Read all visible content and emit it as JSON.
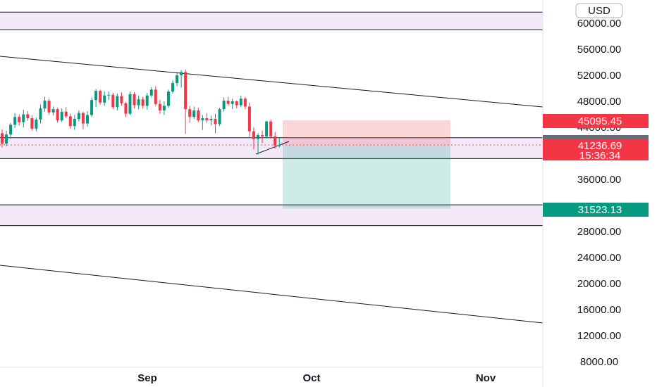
{
  "chart_data": {
    "type": "candlestick",
    "currency": "USD",
    "ylim": [
      6000,
      66000
    ],
    "xlabel": "",
    "ylabel": "",
    "x_ticks": [
      "Sep",
      "Oct",
      "Nov"
    ],
    "y_ticks": [
      60000,
      56000,
      52000,
      48000,
      44000,
      36000,
      28000,
      24000,
      20000,
      16000,
      12000,
      8000
    ],
    "y_tick_labels": [
      "60000.00",
      "56000.00",
      "52000.00",
      "48000.00",
      "44000.00",
      "36000.00",
      "28000.00",
      "24000.00",
      "20000.00",
      "16000.00",
      "12000.00",
      "8000.00"
    ],
    "grid": false,
    "candles": [
      [
        43100,
        43700,
        40900,
        41500
      ],
      [
        41500,
        43500,
        41100,
        42900
      ],
      [
        42900,
        44700,
        42200,
        44400
      ],
      [
        44400,
        46200,
        43900,
        45600
      ],
      [
        45600,
        46000,
        44300,
        44800
      ],
      [
        44800,
        46700,
        44000,
        46000
      ],
      [
        46000,
        46500,
        45000,
        45400
      ],
      [
        45400,
        45900,
        43500,
        43800
      ],
      [
        43800,
        45500,
        43400,
        45200
      ],
      [
        45200,
        47500,
        44600,
        46900
      ],
      [
        46900,
        48700,
        46400,
        48100
      ],
      [
        48100,
        48400,
        45900,
        46300
      ],
      [
        46300,
        47200,
        45800,
        46800
      ],
      [
        46800,
        47000,
        44700,
        45100
      ],
      [
        45100,
        46900,
        44800,
        46400
      ],
      [
        46400,
        47100,
        45400,
        45700
      ],
      [
        45700,
        46100,
        43800,
        44200
      ],
      [
        44200,
        45900,
        43600,
        45300
      ],
      [
        45300,
        46600,
        44900,
        46200
      ],
      [
        46200,
        46400,
        43700,
        44600
      ],
      [
        44600,
        46500,
        44100,
        45900
      ],
      [
        45900,
        48600,
        45600,
        48200
      ],
      [
        48200,
        49900,
        47100,
        49600
      ],
      [
        49600,
        49800,
        47500,
        47800
      ],
      [
        47800,
        49500,
        47300,
        48900
      ],
      [
        48900,
        49500,
        48200,
        49000
      ],
      [
        49000,
        49300,
        46800,
        47100
      ],
      [
        47100,
        49200,
        46600,
        48800
      ],
      [
        48800,
        49400,
        47300,
        47700
      ],
      [
        47700,
        47900,
        45600,
        46100
      ],
      [
        46100,
        49500,
        45900,
        49100
      ],
      [
        49100,
        49400,
        46900,
        47400
      ],
      [
        47400,
        48900,
        46800,
        48300
      ],
      [
        48300,
        48700,
        46900,
        47300
      ],
      [
        47300,
        49300,
        46700,
        48900
      ],
      [
        48900,
        50200,
        48600,
        49800
      ],
      [
        49800,
        50300,
        47300,
        47600
      ],
      [
        47600,
        48200,
        46100,
        46600
      ],
      [
        46600,
        48000,
        45900,
        47300
      ],
      [
        47300,
        49800,
        47000,
        49500
      ],
      [
        49500,
        51200,
        49200,
        50800
      ],
      [
        50800,
        52500,
        50300,
        52000
      ],
      [
        52000,
        52800,
        50100,
        52500
      ],
      [
        52500,
        52900,
        43000,
        46800
      ],
      [
        46800,
        47300,
        44700,
        45600
      ],
      [
        45600,
        47200,
        45300,
        46600
      ],
      [
        46600,
        47000,
        44800,
        45100
      ],
      [
        45100,
        45900,
        43600,
        45400
      ],
      [
        45400,
        46200,
        44700,
        45100
      ],
      [
        45100,
        45800,
        44300,
        45300
      ],
      [
        45300,
        46100,
        43100,
        44500
      ],
      [
        44500,
        47000,
        44200,
        46800
      ],
      [
        46800,
        48600,
        46400,
        48100
      ],
      [
        48100,
        48700,
        47300,
        47600
      ],
      [
        47600,
        48400,
        46800,
        48000
      ],
      [
        48000,
        48100,
        46900,
        47400
      ],
      [
        47400,
        48900,
        47100,
        48400
      ],
      [
        48400,
        48700,
        46800,
        47200
      ],
      [
        47200,
        47800,
        42600,
        43400
      ],
      [
        43400,
        44000,
        40600,
        42200
      ],
      [
        42200,
        43100,
        39800,
        42800
      ],
      [
        42800,
        43500,
        41600,
        42600
      ],
      [
        42600,
        45000,
        42300,
        44900
      ],
      [
        44900,
        45200,
        42300,
        42600
      ],
      [
        42600,
        43300,
        40700,
        41200
      ],
      [
        41200,
        42400,
        40900,
        41237
      ]
    ],
    "zones": [
      {
        "top": 61700,
        "bottom": 59000,
        "color": "#f3e9f8"
      },
      {
        "top": 42400,
        "bottom": 39200,
        "color": "#f3e9f8"
      },
      {
        "top": 32100,
        "bottom": 28900,
        "color": "#f3e9f8"
      }
    ],
    "position": {
      "entry": 41236.69,
      "stop": 45095.45,
      "target": 31523.13
    },
    "labels": {
      "current_price": "41236.69",
      "countdown": "15:36:34",
      "stop": "45095.45",
      "target": "31523.13"
    }
  }
}
